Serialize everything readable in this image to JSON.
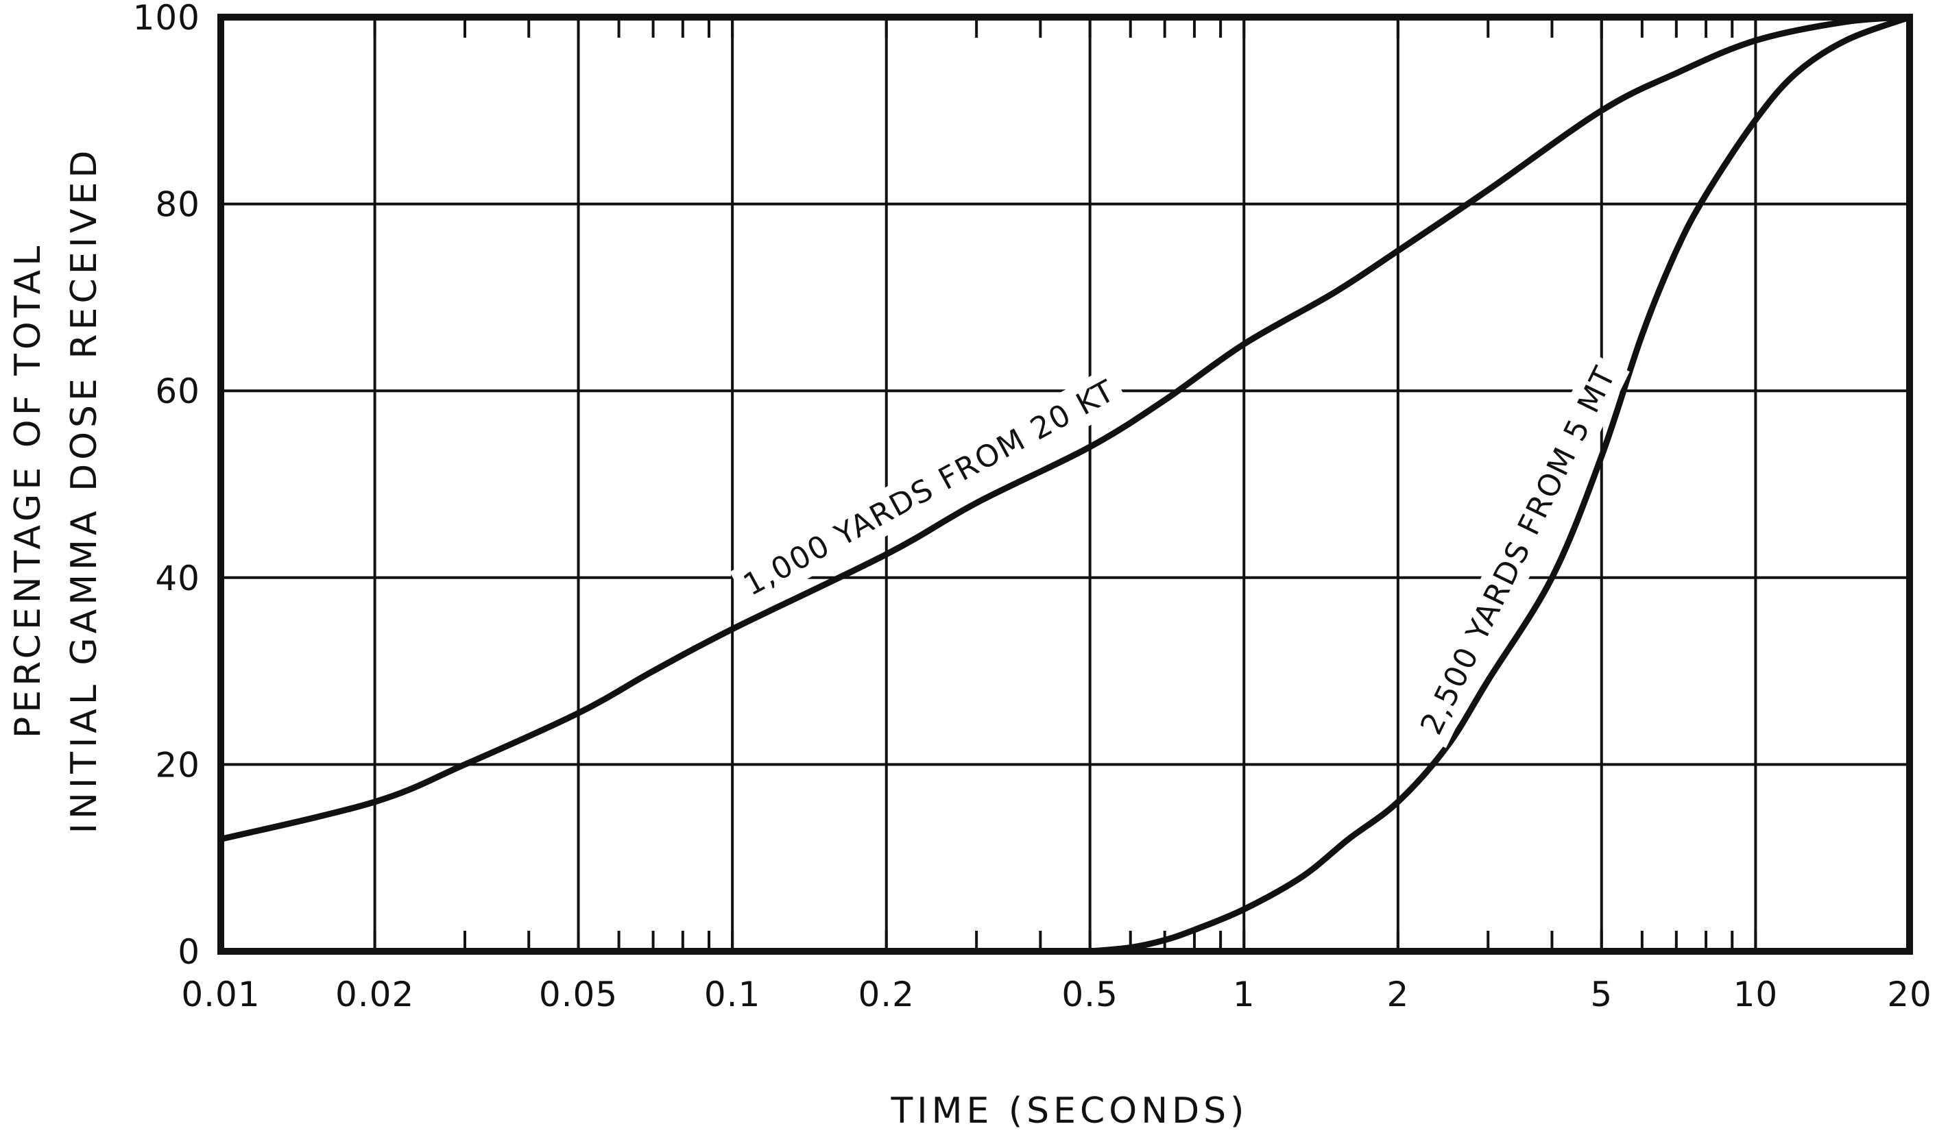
{
  "chart_data": {
    "type": "line",
    "title": "",
    "xlabel": "TIME (SECONDS)",
    "ylabel_line1": "PERCENTAGE OF TOTAL",
    "ylabel_line2": "INITIAL GAMMA DOSE RECEIVED",
    "xscale": "log",
    "xlim": [
      0.01,
      20
    ],
    "ylim": [
      0,
      100
    ],
    "grid": true,
    "x_ticks": [
      0.01,
      0.02,
      0.05,
      0.1,
      0.2,
      0.5,
      1,
      2,
      5,
      10,
      20
    ],
    "x_tick_labels": [
      "0.01",
      "0.02",
      "0.05",
      "0.1",
      "0.2",
      "0.5",
      "1",
      "2",
      "5",
      "10",
      "20"
    ],
    "y_ticks": [
      0,
      20,
      40,
      60,
      80,
      100
    ],
    "y_tick_labels": [
      "0",
      "20",
      "40",
      "60",
      "80",
      "100"
    ],
    "series": [
      {
        "name": "1,000 YARDS FROM 20 KT",
        "x": [
          0.01,
          0.02,
          0.03,
          0.05,
          0.07,
          0.1,
          0.2,
          0.3,
          0.5,
          0.7,
          1,
          1.5,
          2,
          3,
          5,
          7,
          10,
          15,
          20
        ],
        "y": [
          12,
          16,
          20,
          25.5,
          30,
          34.5,
          42.5,
          48,
          54,
          59,
          65,
          70.5,
          75,
          81.5,
          90,
          94,
          97.5,
          99.5,
          100
        ]
      },
      {
        "name": "2,500 YARDS FROM 5 MT",
        "x": [
          0.5,
          0.6,
          0.7,
          0.8,
          1,
          1.3,
          1.6,
          2,
          2.5,
          3,
          4,
          5,
          6,
          7,
          8,
          10,
          12,
          15,
          20
        ],
        "y": [
          0,
          0.4,
          1.2,
          2.3,
          4.5,
          8,
          12,
          16,
          22,
          29,
          40,
          53,
          66,
          75,
          81,
          89,
          94,
          97.5,
          100
        ]
      }
    ]
  }
}
